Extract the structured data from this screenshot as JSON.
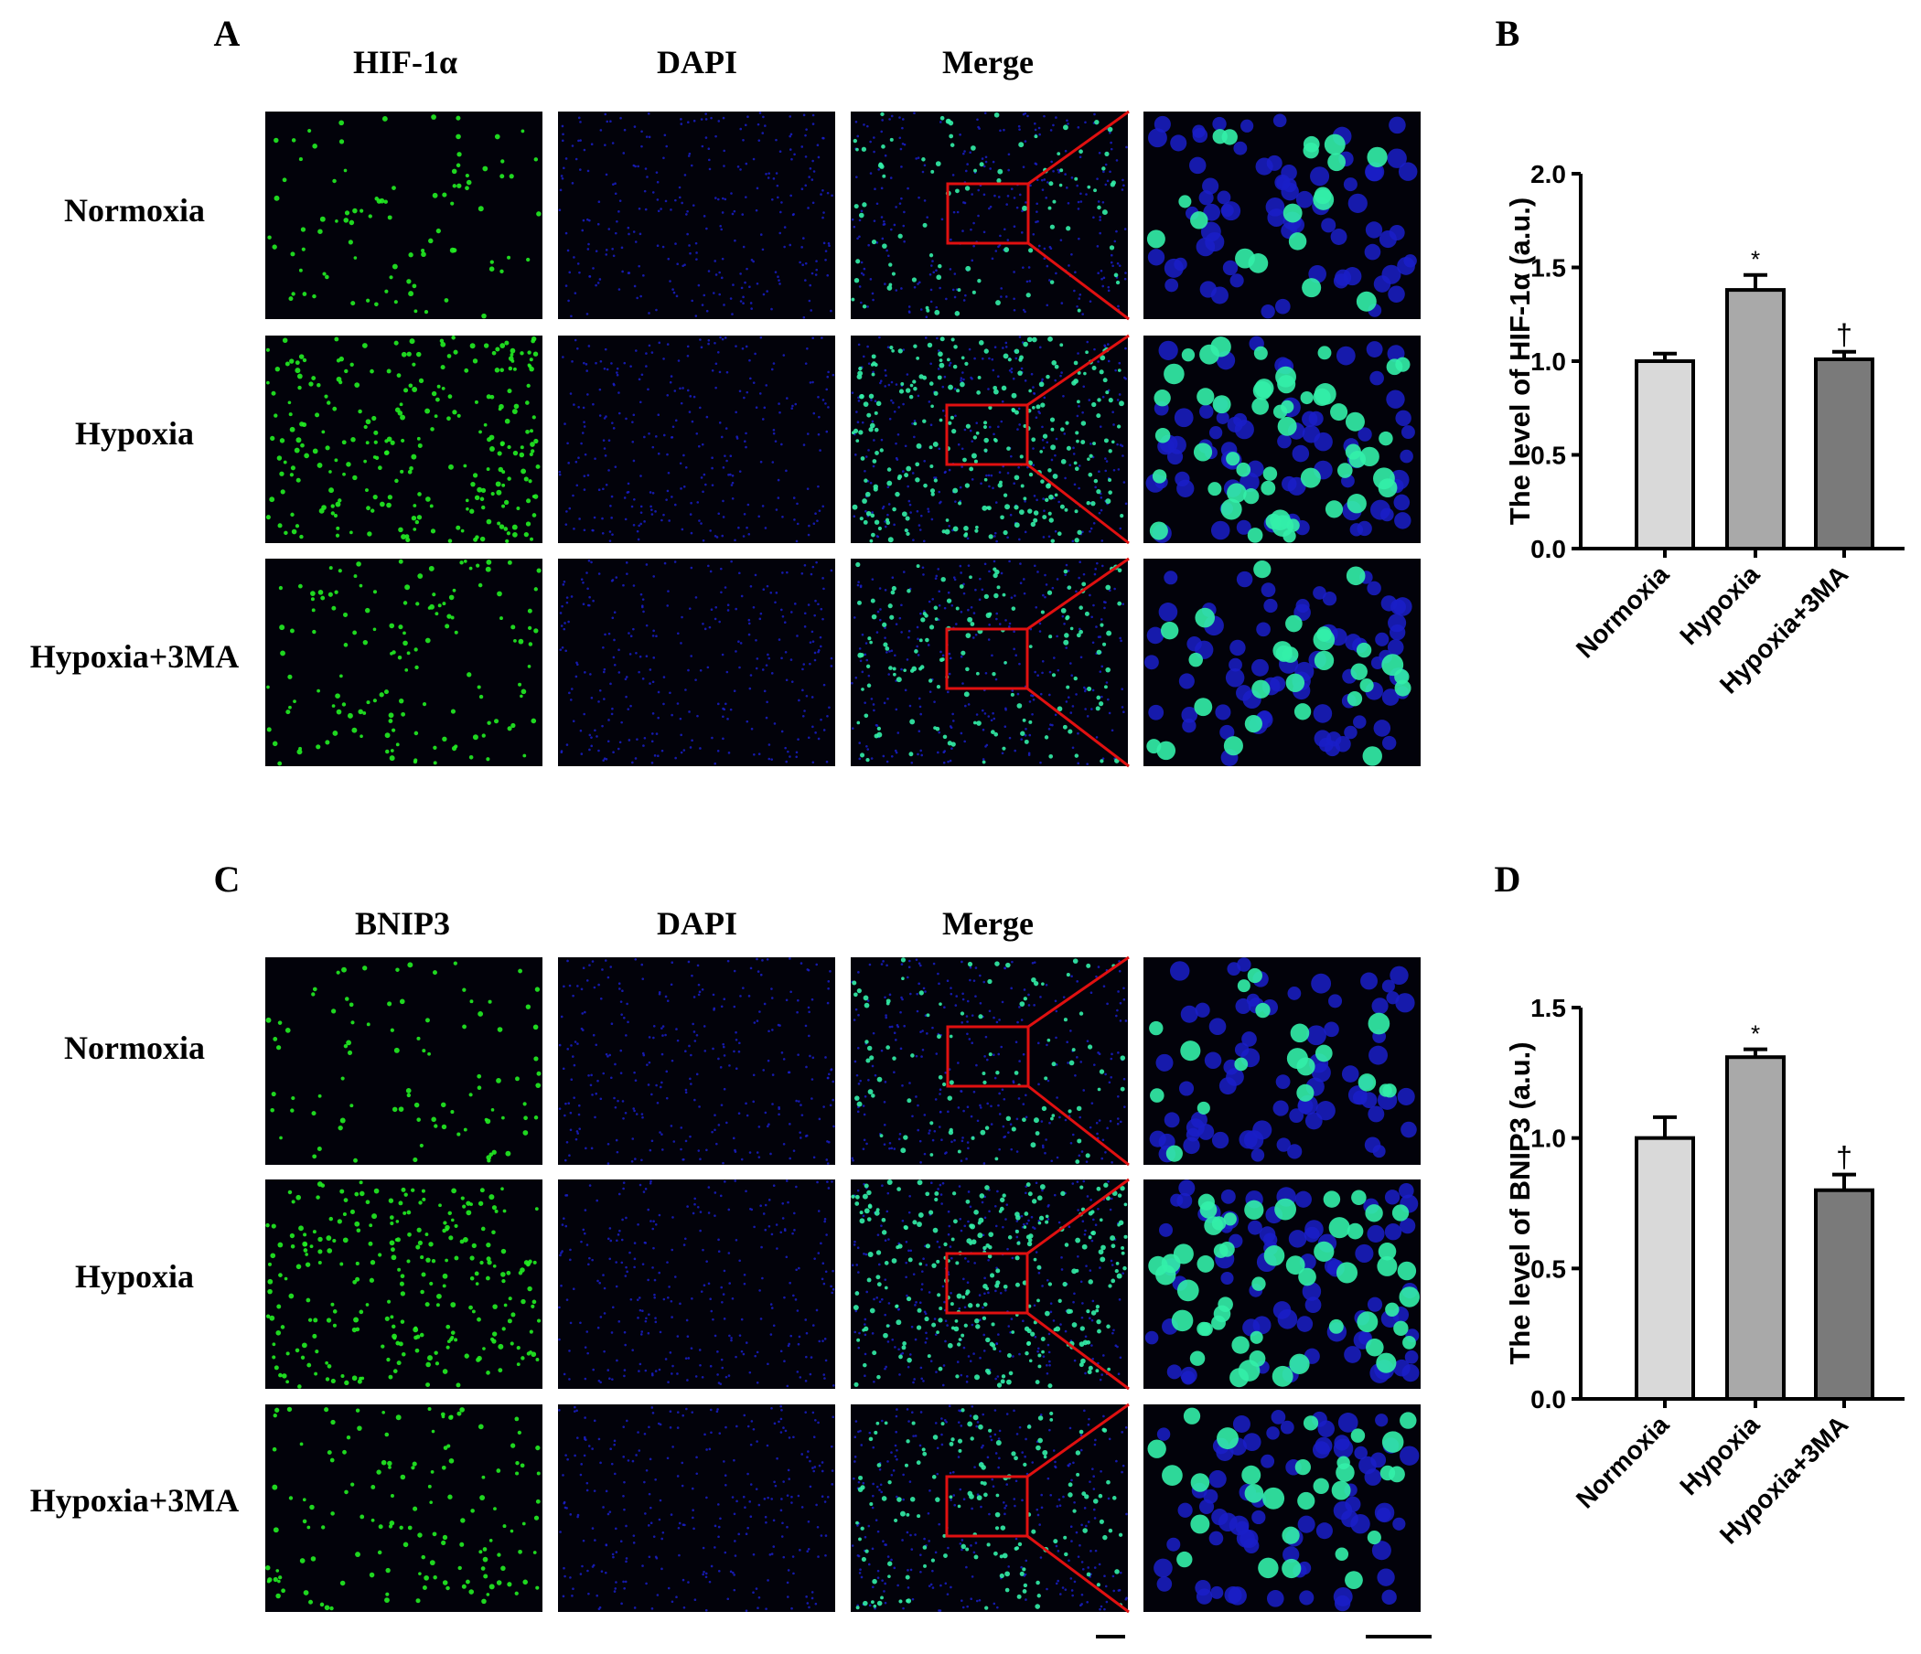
{
  "panels": {
    "A": {
      "letter": "A",
      "columns": [
        "HIF-1α",
        "DAPI",
        "Merge"
      ],
      "rows": [
        "Normoxia",
        "Hypoxia",
        "Hypoxia+3MA"
      ]
    },
    "C": {
      "letter": "C",
      "columns": [
        "BNIP3",
        "DAPI",
        "Merge"
      ],
      "rows": [
        "Normoxia",
        "Hypoxia",
        "Hypoxia+3MA"
      ]
    }
  },
  "colors": {
    "green_channel": "#22ee22",
    "blue_channel": "#1a1fc8",
    "merge_cyan": "#33f0a8",
    "zoom_box": "#e01010",
    "bar_normoxia": "#d9d9d9",
    "bar_hypoxia": "#a9a9a9",
    "bar_hypoxia_3ma": "#7a7a7a"
  },
  "chart_data": [
    {
      "panel": "B",
      "type": "bar",
      "categories": [
        "Normoxia",
        "Hypoxia",
        "Hypoxia+3MA"
      ],
      "values": [
        1.0,
        1.38,
        1.01
      ],
      "errors": [
        0.04,
        0.08,
        0.04
      ],
      "annotations": [
        "",
        "*",
        "†"
      ],
      "ylabel": "The level of HIF-1α (a.u.)",
      "ylim": [
        0,
        2.0
      ],
      "yticks": [
        "0.0",
        "0.5",
        "1.0",
        "1.5",
        "2.0"
      ],
      "grid": false
    },
    {
      "panel": "D",
      "type": "bar",
      "categories": [
        "Normoxia",
        "Hypoxia",
        "Hypoxia+3MA"
      ],
      "values": [
        1.0,
        1.31,
        0.8
      ],
      "errors": [
        0.08,
        0.03,
        0.06
      ],
      "annotations": [
        "",
        "*",
        "†"
      ],
      "ylabel": "The level of BNIP3 (a.u.)",
      "ylim": [
        0,
        1.5
      ],
      "yticks": [
        "0.0",
        "0.5",
        "1.0",
        "1.5"
      ],
      "grid": false
    }
  ]
}
